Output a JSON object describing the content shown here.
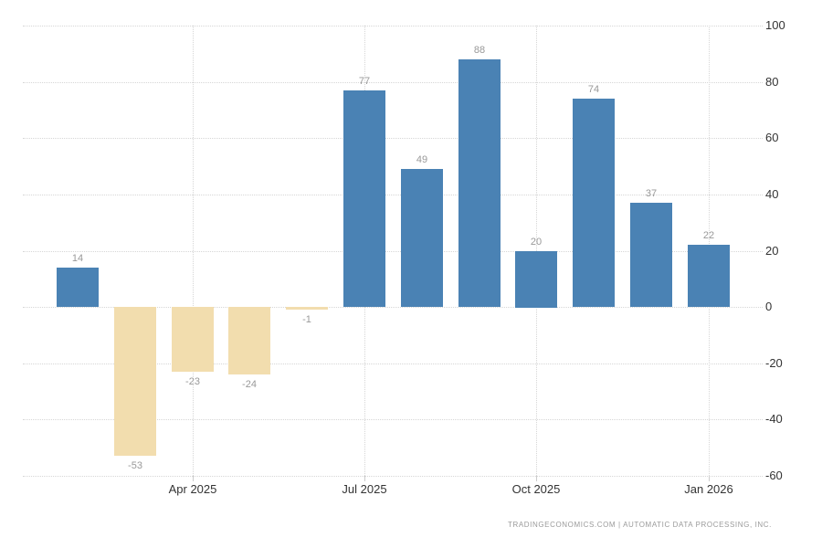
{
  "chart_data": {
    "type": "bar",
    "title": "",
    "values": [
      14,
      -53,
      -23,
      -24,
      -1,
      77,
      49,
      88,
      20,
      74,
      37,
      22
    ],
    "x_ticks": [
      {
        "bar_index": 2,
        "label": "Apr 2025"
      },
      {
        "bar_index": 5,
        "label": "Jul 2025"
      },
      {
        "bar_index": 8,
        "label": "Oct 2025"
      },
      {
        "bar_index": 11,
        "label": "Jan 2026"
      }
    ],
    "y_ticks": [
      100,
      80,
      60,
      40,
      20,
      0,
      -20,
      -40,
      -60
    ],
    "ylim": [
      -60,
      100
    ],
    "grid": "dotted",
    "legend": "none",
    "y_axis_side": "right",
    "colors": {
      "positive_bar": "#4a82b4",
      "negative_bar": "#f2ddae",
      "grid_line": "#d6d6d6",
      "value_label": "#999999",
      "axis_label": "#333333"
    }
  },
  "attribution": {
    "text": "TRADINGECONOMICS.COM | AUTOMATIC DATA PROCESSING, INC."
  }
}
